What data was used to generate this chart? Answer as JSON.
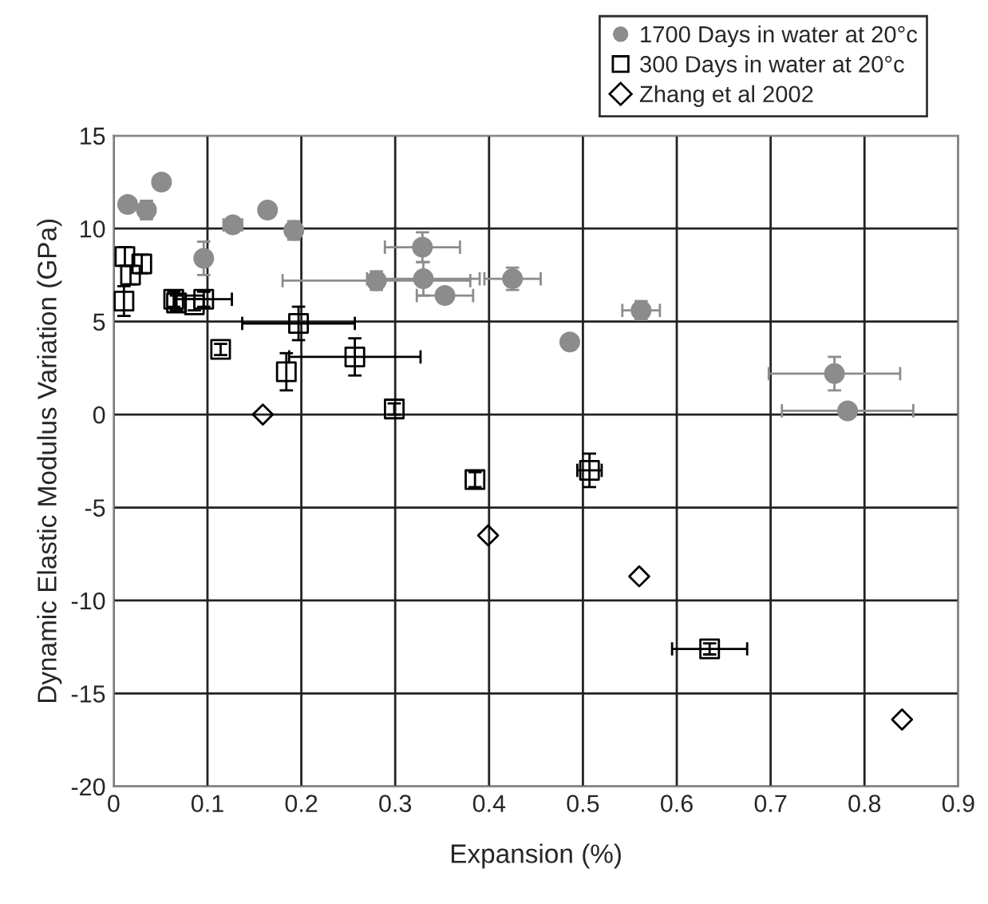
{
  "chart_data": {
    "type": "scatter",
    "xlabel": "Expansion (%)",
    "ylabel": "Dynamic Elastic Modulus Variation (GPa)",
    "xlim": [
      0,
      0.9
    ],
    "ylim": [
      -20,
      15
    ],
    "xticks": [
      0,
      {
        "value": 0.1,
        "label": "0.1"
      },
      {
        "value": 0.2,
        "label": "0.2"
      },
      {
        "value": 0.3,
        "label": "0.3"
      },
      {
        "value": 0.4,
        "label": "0.4"
      },
      {
        "value": 0.5,
        "label": "0.5"
      },
      {
        "value": 0.6,
        "label": "0.6"
      },
      {
        "value": 0.7,
        "label": "0.7"
      },
      {
        "value": 0.8,
        "label": "0.8"
      },
      {
        "value": 0.9,
        "label": "0.9"
      }
    ],
    "yticks": [
      -20,
      -15,
      -10,
      -5,
      0,
      5,
      10,
      15
    ],
    "grid": true,
    "legend": "top right",
    "series": [
      {
        "name": "1700 Days in water at 20°c",
        "color": "#8c8c8c",
        "marker": "circle",
        "x": [
          0.015,
          0.035,
          0.051,
          0.127,
          0.164,
          0.192,
          0.096,
          0.28,
          0.329,
          0.33,
          0.353,
          0.425,
          0.486,
          0.562,
          0.768,
          0.782
        ],
        "values": [
          11.3,
          11.0,
          12.5,
          10.2,
          11.0,
          9.9,
          8.4,
          7.2,
          9.0,
          7.3,
          6.4,
          7.3,
          3.9,
          5.6,
          2.2,
          0.2
        ],
        "errors": [
          null,
          0.5,
          null,
          null,
          null,
          0.5,
          0.9,
          0.5,
          0.8,
          0.9,
          null,
          0.6,
          0.3,
          0.5,
          0.9,
          null
        ],
        "xerrors": [
          null,
          null,
          null,
          0.01,
          null,
          null,
          null,
          0.1,
          0.04,
          0.06,
          0.03,
          0.03,
          null,
          0.02,
          0.07,
          0.07
        ]
      },
      {
        "name": "300 Days in water at 20°c",
        "color": "#000000",
        "marker": "square",
        "x": [
          0.012,
          0.03,
          0.018,
          0.011,
          0.064,
          0.067,
          0.086,
          0.096,
          0.197,
          0.114,
          0.257,
          0.184,
          0.299,
          0.385,
          0.507,
          0.635
        ],
        "values": [
          8.5,
          8.1,
          7.5,
          6.1,
          6.2,
          6.0,
          5.9,
          6.2,
          4.9,
          3.5,
          3.1,
          2.3,
          0.3,
          -3.5,
          -3.0,
          -12.6
        ],
        "errors": [
          0.5,
          0.5,
          0.5,
          0.8,
          0.4,
          0.4,
          0.3,
          0.4,
          0.9,
          0.3,
          1.0,
          1.0,
          0.3,
          0.4,
          0.9,
          0.3
        ],
        "xerrors": [
          null,
          null,
          null,
          null,
          null,
          null,
          null,
          0.03,
          0.06,
          null,
          0.07,
          null,
          null,
          null,
          0.013,
          0.04
        ]
      },
      {
        "name": "Zhang et al 2002",
        "color": "#000000",
        "marker": "diamond",
        "x": [
          0.159,
          0.399,
          0.56,
          0.84
        ],
        "values": [
          0.0,
          -6.5,
          -8.7,
          -16.4
        ]
      }
    ]
  }
}
